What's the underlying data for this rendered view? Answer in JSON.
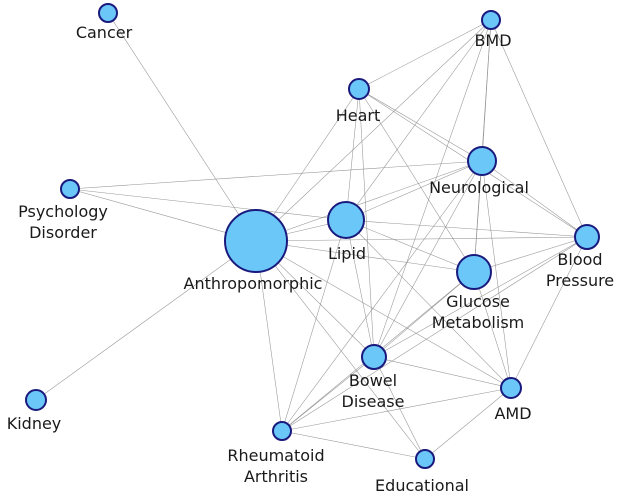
{
  "nodes": [
    {
      "id": "cancer",
      "label_lines": [
        "Cancer"
      ]
    },
    {
      "id": "bmd",
      "label_lines": [
        "BMD"
      ]
    },
    {
      "id": "heart",
      "label_lines": [
        "Heart"
      ]
    },
    {
      "id": "neurological",
      "label_lines": [
        "Neurological"
      ]
    },
    {
      "id": "psychology",
      "label_lines": [
        "Psychology",
        "Disorder"
      ]
    },
    {
      "id": "anthropomorphic",
      "label_lines": [
        "Anthropomorphic"
      ]
    },
    {
      "id": "lipid",
      "label_lines": [
        "Lipid"
      ]
    },
    {
      "id": "blood_pressure",
      "label_lines": [
        "Blood",
        "Pressure"
      ]
    },
    {
      "id": "glucose",
      "label_lines": [
        "Glucose",
        "Metabolism"
      ]
    },
    {
      "id": "bowel",
      "label_lines": [
        "Bowel",
        "Disease"
      ]
    },
    {
      "id": "amd",
      "label_lines": [
        "AMD"
      ]
    },
    {
      "id": "kidney",
      "label_lines": [
        "Kidney"
      ]
    },
    {
      "id": "rheumatoid",
      "label_lines": [
        "Rheumatoid",
        "Arthritis"
      ]
    },
    {
      "id": "educational",
      "label_lines": [
        "Educational"
      ]
    }
  ],
  "edges": [
    [
      "cancer",
      "anthropomorphic"
    ],
    [
      "kidney",
      "anthropomorphic"
    ],
    [
      "psychology",
      "anthropomorphic"
    ],
    [
      "psychology",
      "lipid"
    ],
    [
      "psychology",
      "neurological"
    ],
    [
      "anthropomorphic",
      "lipid"
    ],
    [
      "anthropomorphic",
      "heart"
    ],
    [
      "anthropomorphic",
      "bmd"
    ],
    [
      "anthropomorphic",
      "neurological"
    ],
    [
      "anthropomorphic",
      "blood_pressure"
    ],
    [
      "anthropomorphic",
      "glucose"
    ],
    [
      "anthropomorphic",
      "bowel"
    ],
    [
      "anthropomorphic",
      "amd"
    ],
    [
      "anthropomorphic",
      "rheumatoid"
    ],
    [
      "anthropomorphic",
      "educational"
    ],
    [
      "heart",
      "bmd"
    ],
    [
      "heart",
      "neurological"
    ],
    [
      "heart",
      "lipid"
    ],
    [
      "heart",
      "blood_pressure"
    ],
    [
      "heart",
      "glucose"
    ],
    [
      "heart",
      "bowel"
    ],
    [
      "bmd",
      "neurological"
    ],
    [
      "bmd",
      "blood_pressure"
    ],
    [
      "bmd",
      "glucose"
    ],
    [
      "bmd",
      "lipid"
    ],
    [
      "bmd",
      "bowel"
    ],
    [
      "neurological",
      "lipid"
    ],
    [
      "neurological",
      "blood_pressure"
    ],
    [
      "neurological",
      "glucose"
    ],
    [
      "neurological",
      "amd"
    ],
    [
      "neurological",
      "bowel"
    ],
    [
      "neurological",
      "rheumatoid"
    ],
    [
      "lipid",
      "blood_pressure"
    ],
    [
      "lipid",
      "glucose"
    ],
    [
      "lipid",
      "bowel"
    ],
    [
      "lipid",
      "amd"
    ],
    [
      "lipid",
      "rheumatoid"
    ],
    [
      "blood_pressure",
      "glucose"
    ],
    [
      "blood_pressure",
      "bowel"
    ],
    [
      "blood_pressure",
      "amd"
    ],
    [
      "blood_pressure",
      "rheumatoid"
    ],
    [
      "glucose",
      "bowel"
    ],
    [
      "glucose",
      "amd"
    ],
    [
      "glucose",
      "rheumatoid"
    ],
    [
      "bowel",
      "amd"
    ],
    [
      "bowel",
      "rheumatoid"
    ],
    [
      "bowel",
      "educational"
    ],
    [
      "rheumatoid",
      "amd"
    ],
    [
      "rheumatoid",
      "educational"
    ],
    [
      "amd",
      "educational"
    ]
  ],
  "colors": {
    "node_fill": "#6ac7f7",
    "node_stroke": "#1a1a7e",
    "edge": "#8a8a8a"
  }
}
